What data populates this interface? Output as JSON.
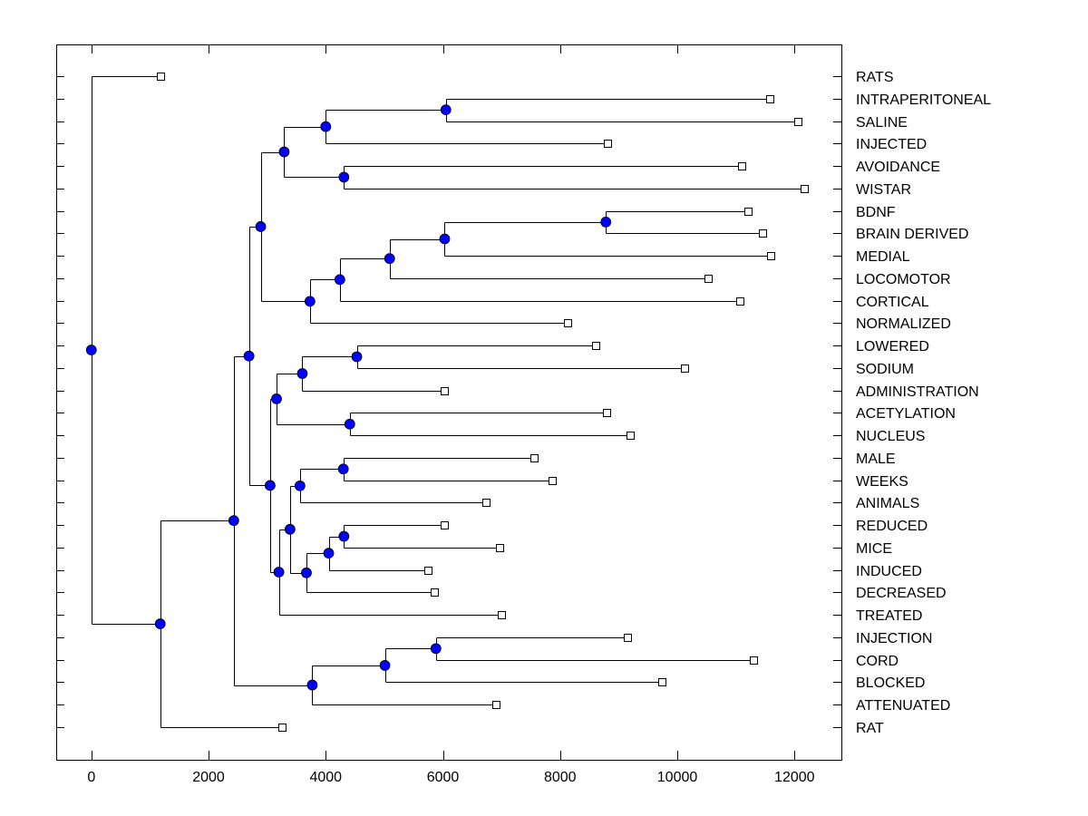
{
  "chart_data": {
    "type": "dendrogram",
    "title": "",
    "xlabel": "",
    "ylabel": "",
    "xlim": [
      -600,
      12800
    ],
    "x_ticks": [
      0,
      2000,
      4000,
      6000,
      8000,
      10000,
      12000
    ],
    "x_tick_labels": [
      "0",
      "2000",
      "4000",
      "6000",
      "8000",
      "10000",
      "12000"
    ],
    "grid": false,
    "legend": "none",
    "colors": {
      "node_fill": "#0000ff",
      "leaf_fill": "#ffffff",
      "line": "#000000"
    },
    "leaves": [
      {
        "label": "RATS",
        "x": 1175
      },
      {
        "label": "INTRAPERITONEAL",
        "x": 11570
      },
      {
        "label": "SALINE",
        "x": 12050
      },
      {
        "label": "INJECTED",
        "x": 8810
      },
      {
        "label": "AVOIDANCE",
        "x": 11100
      },
      {
        "label": "WISTAR",
        "x": 12170
      },
      {
        "label": "BDNF",
        "x": 11200
      },
      {
        "label": "BRAIN DERIVED",
        "x": 11460
      },
      {
        "label": "MEDIAL",
        "x": 11600
      },
      {
        "label": "LOCOMOTOR",
        "x": 10530
      },
      {
        "label": "CORTICAL",
        "x": 11060
      },
      {
        "label": "NORMALIZED",
        "x": 8120
      },
      {
        "label": "LOWERED",
        "x": 8610
      },
      {
        "label": "SODIUM",
        "x": 10130
      },
      {
        "label": "ADMINISTRATION",
        "x": 6030
      },
      {
        "label": "ACETYLATION",
        "x": 8800
      },
      {
        "label": "NUCLEUS",
        "x": 9190
      },
      {
        "label": "MALE",
        "x": 7560
      },
      {
        "label": "WEEKS",
        "x": 7870
      },
      {
        "label": "ANIMALS",
        "x": 6740
      },
      {
        "label": "REDUCED",
        "x": 6020
      },
      {
        "label": "MICE",
        "x": 6970
      },
      {
        "label": "INDUCED",
        "x": 5740
      },
      {
        "label": "DECREASED",
        "x": 5860
      },
      {
        "label": "TREATED",
        "x": 6990
      },
      {
        "label": "INJECTION",
        "x": 9150
      },
      {
        "label": "CORD",
        "x": 11300
      },
      {
        "label": "BLOCKED",
        "x": 9740
      },
      {
        "label": "ATTENUATED",
        "x": 6900
      },
      {
        "label": "RAT",
        "x": 3250
      }
    ],
    "tree": {
      "x": 0,
      "children": [
        {
          "leaf": 0
        },
        {
          "x": 1175,
          "children": [
            {
              "x": 2430,
              "children": [
                {
                  "x": 2690,
                  "children": [
                    {
                      "x": 2890,
                      "children": [
                        {
                          "x": 3290,
                          "children": [
                            {
                              "x": 4000,
                              "children": [
                                {
                                  "x": 6050,
                                  "children": [
                                    {
                                      "leaf": 1
                                    },
                                    {
                                      "leaf": 2
                                    }
                                  ]
                                },
                                {
                                  "leaf": 3
                                }
                              ]
                            },
                            {
                              "x": 4310,
                              "children": [
                                {
                                  "leaf": 4
                                },
                                {
                                  "leaf": 5
                                }
                              ]
                            }
                          ]
                        },
                        {
                          "x": 3730,
                          "children": [
                            {
                              "x": 4240,
                              "children": [
                                {
                                  "x": 5090,
                                  "children": [
                                    {
                                      "x": 6030,
                                      "children": [
                                        {
                                          "x": 8780,
                                          "children": [
                                            {
                                              "leaf": 6
                                            },
                                            {
                                              "leaf": 7
                                            }
                                          ]
                                        },
                                        {
                                          "leaf": 8
                                        }
                                      ]
                                    },
                                    {
                                      "leaf": 9
                                    }
                                  ]
                                },
                                {
                                  "leaf": 10
                                }
                              ]
                            },
                            {
                              "leaf": 11
                            }
                          ]
                        }
                      ]
                    },
                    {
                      "x": 3050,
                      "children": [
                        {
                          "x": 3160,
                          "children": [
                            {
                              "x": 3600,
                              "children": [
                                {
                                  "x": 4530,
                                  "children": [
                                    {
                                      "leaf": 12
                                    },
                                    {
                                      "leaf": 13
                                    }
                                  ]
                                },
                                {
                                  "leaf": 14
                                }
                              ]
                            },
                            {
                              "x": 4410,
                              "children": [
                                {
                                  "leaf": 15
                                },
                                {
                                  "leaf": 16
                                }
                              ]
                            }
                          ]
                        },
                        {
                          "x": 3200,
                          "children": [
                            {
                              "x": 3390,
                              "children": [
                                {
                                  "x": 3560,
                                  "children": [
                                    {
                                      "x": 4300,
                                      "children": [
                                        {
                                          "leaf": 17
                                        },
                                        {
                                          "leaf": 18
                                        }
                                      ]
                                    },
                                    {
                                      "leaf": 19
                                    }
                                  ]
                                },
                                {
                                  "x": 3670,
                                  "children": [
                                    {
                                      "x": 4050,
                                      "children": [
                                        {
                                          "x": 4310,
                                          "children": [
                                            {
                                              "leaf": 20
                                            },
                                            {
                                              "leaf": 21
                                            }
                                          ]
                                        },
                                        {
                                          "leaf": 22
                                        }
                                      ]
                                    },
                                    {
                                      "leaf": 23
                                    }
                                  ]
                                }
                              ]
                            },
                            {
                              "leaf": 24
                            }
                          ]
                        }
                      ]
                    }
                  ]
                },
                {
                  "x": 3770,
                  "children": [
                    {
                      "x": 5010,
                      "children": [
                        {
                          "x": 5880,
                          "children": [
                            {
                              "leaf": 25
                            },
                            {
                              "leaf": 26
                            }
                          ]
                        },
                        {
                          "leaf": 27
                        }
                      ]
                    },
                    {
                      "leaf": 28
                    }
                  ]
                }
              ]
            },
            {
              "leaf": 29
            }
          ]
        }
      ]
    }
  }
}
